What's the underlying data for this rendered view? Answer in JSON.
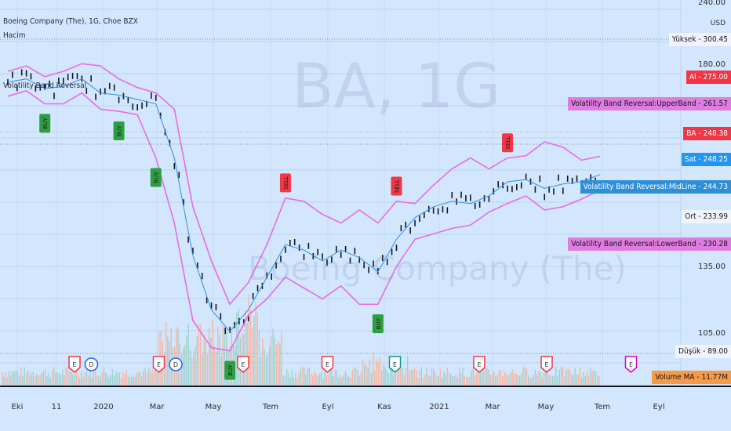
{
  "header": {
    "symbol": "Boeing Company (The), 1G, Choe BZX",
    "volume_name": "Hacim",
    "indicator_name": "Volatility Band Reversal"
  },
  "watermark": {
    "ticker": "BA, 1G",
    "company": "Boeing Company (The)"
  },
  "axis": {
    "currency": "USD",
    "price_ticks": [
      "240.00",
      "180.00",
      "135.00",
      "105.00"
    ],
    "time_ticks": [
      "Eki",
      "11",
      "2020",
      "Mar",
      "May",
      "Tem",
      "Eyl",
      "Kas",
      "2021",
      "Mar",
      "May",
      "Tem",
      "Eyl"
    ]
  },
  "price_labels": [
    {
      "name": "Yüksek",
      "value": "300.45"
    },
    {
      "name": "Al",
      "value": "275.00"
    },
    {
      "name": "Volatility Band Reversal:UpperBand",
      "value": "261.57"
    },
    {
      "name": "BA",
      "value": "248.38"
    },
    {
      "name": "Sat",
      "value": "248.25"
    },
    {
      "name": "Volatility Band Reversal:MidLine",
      "value": "244.73"
    },
    {
      "name": "Ort",
      "value": "233.99"
    },
    {
      "name": "Volatility Band Reversal:LowerBand",
      "value": "230.28"
    },
    {
      "name": "Düşük",
      "value": "89.00"
    },
    {
      "name": "Volume MA",
      "value": "11.77M"
    }
  ],
  "colors": {
    "background": "#d2e6fd",
    "band": "#e86be8",
    "midline": "#2f8fe0",
    "buy": "#2e9f40",
    "sell": "#f23645",
    "upper_label": "#e07be0",
    "mid_label": "#2d8fd9",
    "last_price_label": "#f23645",
    "volume_ma_label": "#f79a47"
  },
  "chart_data": {
    "type": "line",
    "series": [
      {
        "name": "Volatility Band Reversal:UpperBand",
        "values": [
          340,
          345,
          335,
          340,
          347,
          345,
          333,
          325,
          320,
          305,
          215,
          165,
          125,
          145,
          180,
          223,
          220,
          208,
          200,
          212,
          200,
          220,
          218,
          235,
          250,
          260,
          250,
          260,
          262,
          275,
          270,
          258,
          261.57
        ]
      },
      {
        "name": "Volatility Band Reversal:MidLine",
        "values": [
          330,
          333,
          324,
          326,
          333,
          320,
          318,
          314,
          310,
          260,
          170,
          120,
          100,
          120,
          150,
          180,
          175,
          165,
          175,
          168,
          155,
          185,
          205,
          215,
          220,
          218,
          225,
          238,
          240,
          232,
          236,
          238,
          244.73
        ]
      },
      {
        "name": "Volatility Band Reversal:LowerBand",
        "values": [
          317,
          322,
          310,
          310,
          320,
          305,
          303,
          300,
          260,
          200,
          110,
          85,
          82,
          115,
          130,
          150,
          140,
          130,
          142,
          125,
          125,
          160,
          185,
          190,
          195,
          198,
          210,
          218,
          225,
          212,
          215,
          222,
          230.28
        ]
      }
    ],
    "signals": [
      {
        "label": "BUY",
        "index": 2
      },
      {
        "label": "BUY",
        "index": 6
      },
      {
        "label": "BUY",
        "index": 8
      },
      {
        "label": "BUY",
        "index": 12
      },
      {
        "label": "SELL",
        "index": 15
      },
      {
        "label": "SELL",
        "index": 21
      },
      {
        "label": "BUY",
        "index": 20
      },
      {
        "label": "SELL",
        "index": 27
      }
    ],
    "events": [
      {
        "type": "E",
        "index": 2
      },
      {
        "type": "D",
        "index": 3
      },
      {
        "type": "E",
        "index": 7
      },
      {
        "type": "D",
        "index": 8
      },
      {
        "type": "E",
        "index": 12
      },
      {
        "type": "E",
        "index": 17
      },
      {
        "type": "E",
        "index": 21
      },
      {
        "type": "E",
        "index": 26
      },
      {
        "type": "E",
        "index": 30
      },
      {
        "type": "E",
        "index": 35
      }
    ],
    "xlabel": "",
    "ylabel": ""
  }
}
